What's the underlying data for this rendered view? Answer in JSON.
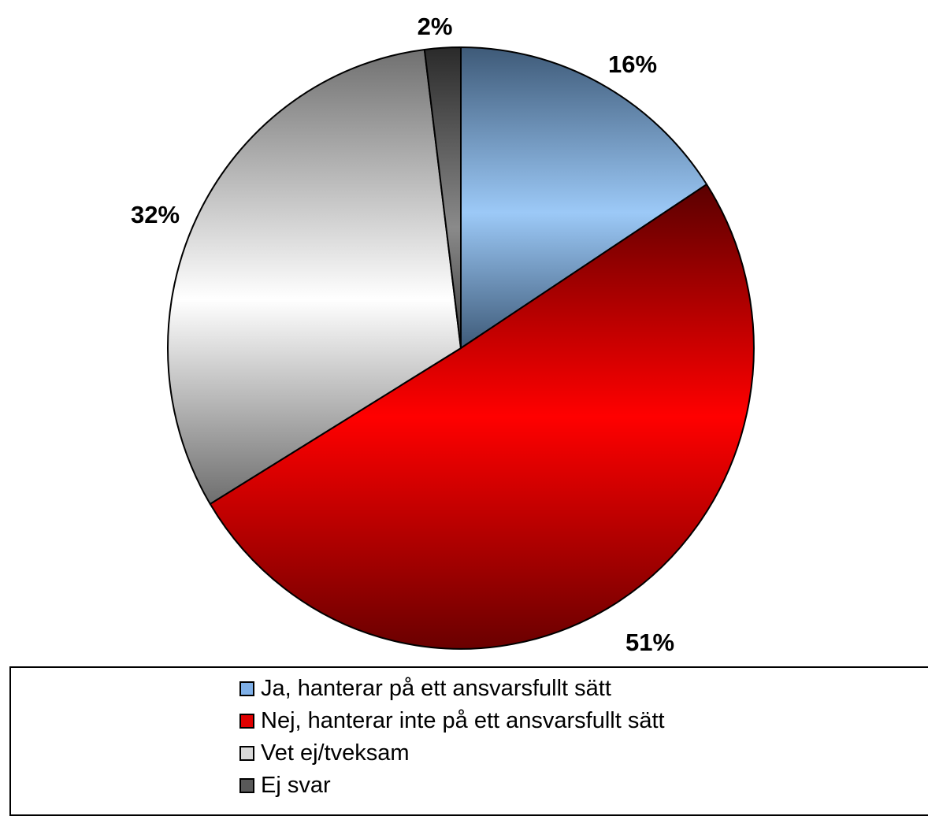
{
  "chart_data": {
    "type": "pie",
    "slices": [
      {
        "label": "Ja, hanterar på ett ansvarsfullt sätt",
        "value": 16,
        "value_label": "16%",
        "color": "#7fb0e8"
      },
      {
        "label": "Nej, hanterar inte på ett ansvarsfullt sätt",
        "value": 51,
        "value_label": "51%",
        "color": "#e00000"
      },
      {
        "label": "Vet ej/tveksam",
        "value": 32,
        "value_label": "32%",
        "color": "#d9d9d9"
      },
      {
        "label": "Ej svar",
        "value": 2,
        "value_label": "2%",
        "color": "#595959"
      }
    ],
    "legend_position": "bottom",
    "title": "",
    "start_angle_deg": 0,
    "direction": "clockwise"
  }
}
